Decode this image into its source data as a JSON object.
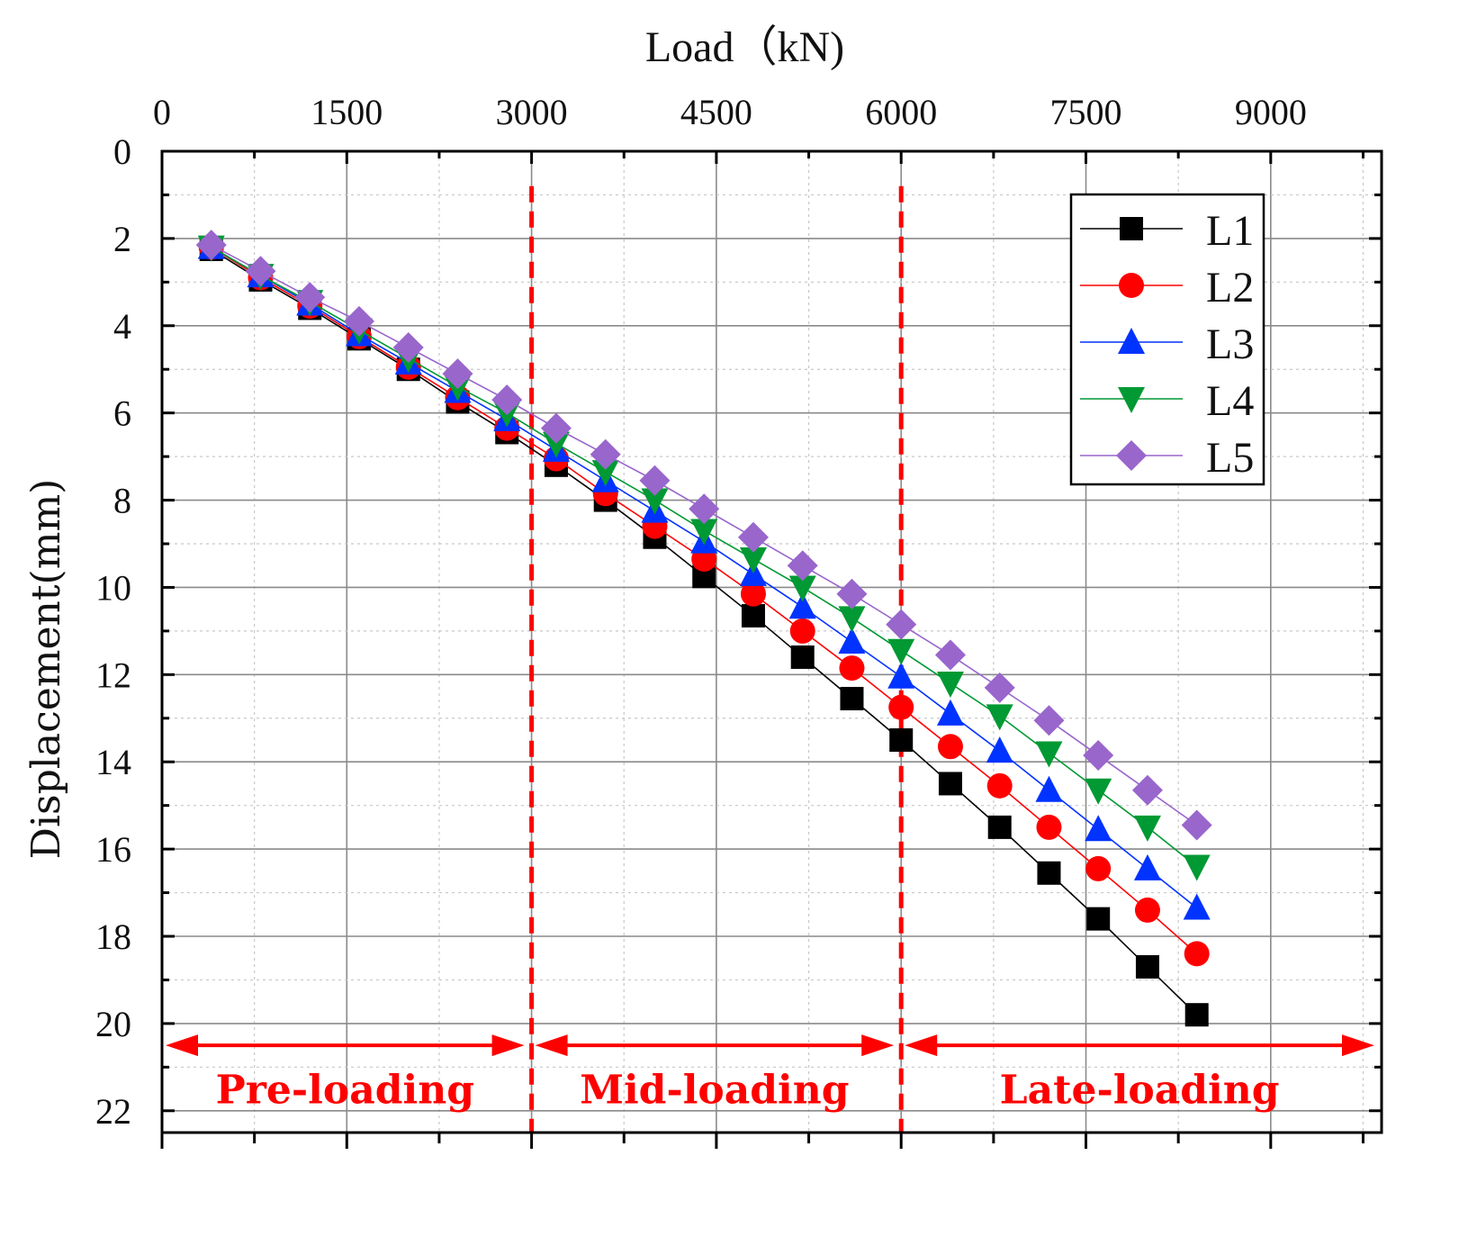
{
  "chart_data": {
    "type": "line",
    "title": "",
    "xlabel": "Load（kN)",
    "ylabel": "Displacement(mm)",
    "x_axis_position": "top",
    "y_axis_inverted": true,
    "xlim": [
      0,
      9900
    ],
    "ylim": [
      0,
      22.5
    ],
    "x_ticks": [
      0,
      1500,
      3000,
      4500,
      6000,
      7500,
      9000
    ],
    "x_tick_labels": [
      "0",
      "1500",
      "3000",
      "4500",
      "6000",
      "7500",
      "9000"
    ],
    "y_ticks": [
      0,
      2,
      4,
      6,
      8,
      10,
      12,
      14,
      16,
      18,
      20,
      22
    ],
    "y_tick_labels": [
      "0",
      "2",
      "4",
      "6",
      "8",
      "10",
      "12",
      "14",
      "16",
      "18",
      "20",
      "22"
    ],
    "grid": true,
    "legend_position": "top-right",
    "x": [
      400,
      800,
      1200,
      1600,
      2000,
      2400,
      2800,
      3200,
      3600,
      4000,
      4400,
      4800,
      5200,
      5600,
      6000,
      6400,
      6800,
      7200,
      7600,
      8000,
      8400
    ],
    "series": [
      {
        "name": "L1",
        "color": "#000000",
        "marker": "square",
        "values": [
          2.25,
          2.95,
          3.6,
          4.3,
          5.0,
          5.75,
          6.45,
          7.2,
          8.0,
          8.85,
          9.75,
          10.65,
          11.6,
          12.55,
          13.5,
          14.5,
          15.5,
          16.55,
          17.6,
          18.7,
          19.8
        ]
      },
      {
        "name": "L2",
        "color": "#ff0000",
        "marker": "circle",
        "values": [
          2.2,
          2.9,
          3.55,
          4.25,
          4.95,
          5.65,
          6.35,
          7.05,
          7.85,
          8.6,
          9.35,
          10.15,
          11.0,
          11.85,
          12.75,
          13.65,
          14.55,
          15.5,
          16.45,
          17.4,
          18.4
        ]
      },
      {
        "name": "L3",
        "color": "#0033ff",
        "marker": "triangle-up",
        "values": [
          2.2,
          2.85,
          3.5,
          4.2,
          4.85,
          5.5,
          6.15,
          6.85,
          7.55,
          8.25,
          8.95,
          9.7,
          10.45,
          11.25,
          12.05,
          12.9,
          13.75,
          14.65,
          15.55,
          16.45,
          17.35
        ]
      },
      {
        "name": "L4",
        "color": "#009933",
        "marker": "triangle-down",
        "values": [
          2.2,
          2.85,
          3.45,
          4.1,
          4.75,
          5.4,
          6.0,
          6.7,
          7.35,
          8.0,
          8.7,
          9.35,
          10.0,
          10.7,
          11.45,
          12.2,
          12.95,
          13.8,
          14.65,
          15.5,
          16.4
        ]
      },
      {
        "name": "L5",
        "color": "#9966cc",
        "marker": "diamond",
        "values": [
          2.15,
          2.75,
          3.35,
          3.9,
          4.5,
          5.1,
          5.7,
          6.35,
          6.95,
          7.55,
          8.2,
          8.85,
          9.5,
          10.15,
          10.85,
          11.55,
          12.3,
          13.05,
          13.85,
          14.65,
          15.45
        ]
      }
    ],
    "divider_lines": [
      {
        "x": 3000,
        "color": "#ff0000",
        "style": "dashed"
      },
      {
        "x": 6000,
        "color": "#ff0000",
        "style": "dashed"
      }
    ],
    "regions": [
      {
        "label": "Pre-loading",
        "x_start": 0,
        "x_end": 3000
      },
      {
        "label": "Mid-loading",
        "x_start": 3000,
        "x_end": 6000
      },
      {
        "label": "Late-loading",
        "x_start": 6000,
        "x_end": 9900
      }
    ],
    "region_arrow_y": 20.5,
    "region_label_y": 21.5
  }
}
